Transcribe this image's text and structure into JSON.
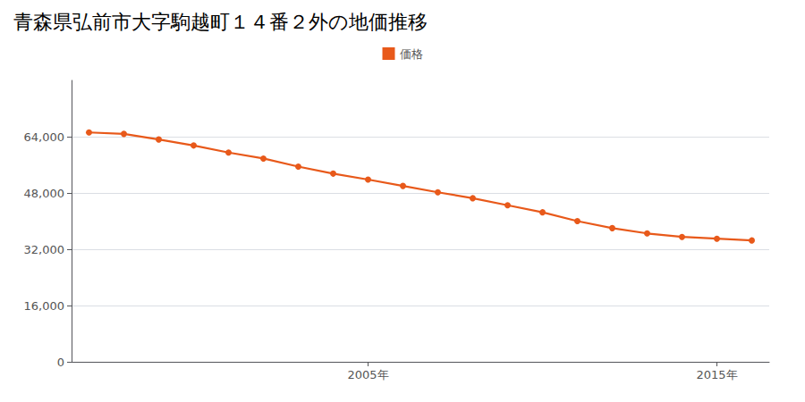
{
  "chart_data": {
    "type": "line",
    "title": "青森県弘前市大字駒越町１４番２外の地価推移",
    "x": [
      1997,
      1998,
      1999,
      2000,
      2001,
      2002,
      2003,
      2004,
      2005,
      2006,
      2007,
      2008,
      2009,
      2010,
      2011,
      2012,
      2013,
      2014,
      2015,
      2016
    ],
    "series": [
      {
        "name": "価格",
        "color": "#E8591A",
        "values": [
          65200,
          64800,
          63200,
          61500,
          59500,
          57800,
          55500,
          53500,
          51800,
          50000,
          48200,
          46500,
          44500,
          42500,
          40000,
          38000,
          36500,
          35500,
          35000,
          34500
        ]
      }
    ],
    "xlim": [
      1996.5,
      2016.5
    ],
    "xticks": [
      {
        "value": 2005,
        "label": "2005年"
      },
      {
        "value": 2015,
        "label": "2015年"
      }
    ],
    "ylim": [
      0,
      80000
    ],
    "yticks": [
      0,
      {
        "value": 16000,
        "label": "16,000"
      },
      {
        "value": 32000,
        "label": "32,000"
      },
      {
        "value": 48000,
        "label": "48,000"
      },
      {
        "value": 64000,
        "label": "64,000"
      }
    ],
    "grid": true,
    "legend": "top",
    "marker": "circle"
  }
}
